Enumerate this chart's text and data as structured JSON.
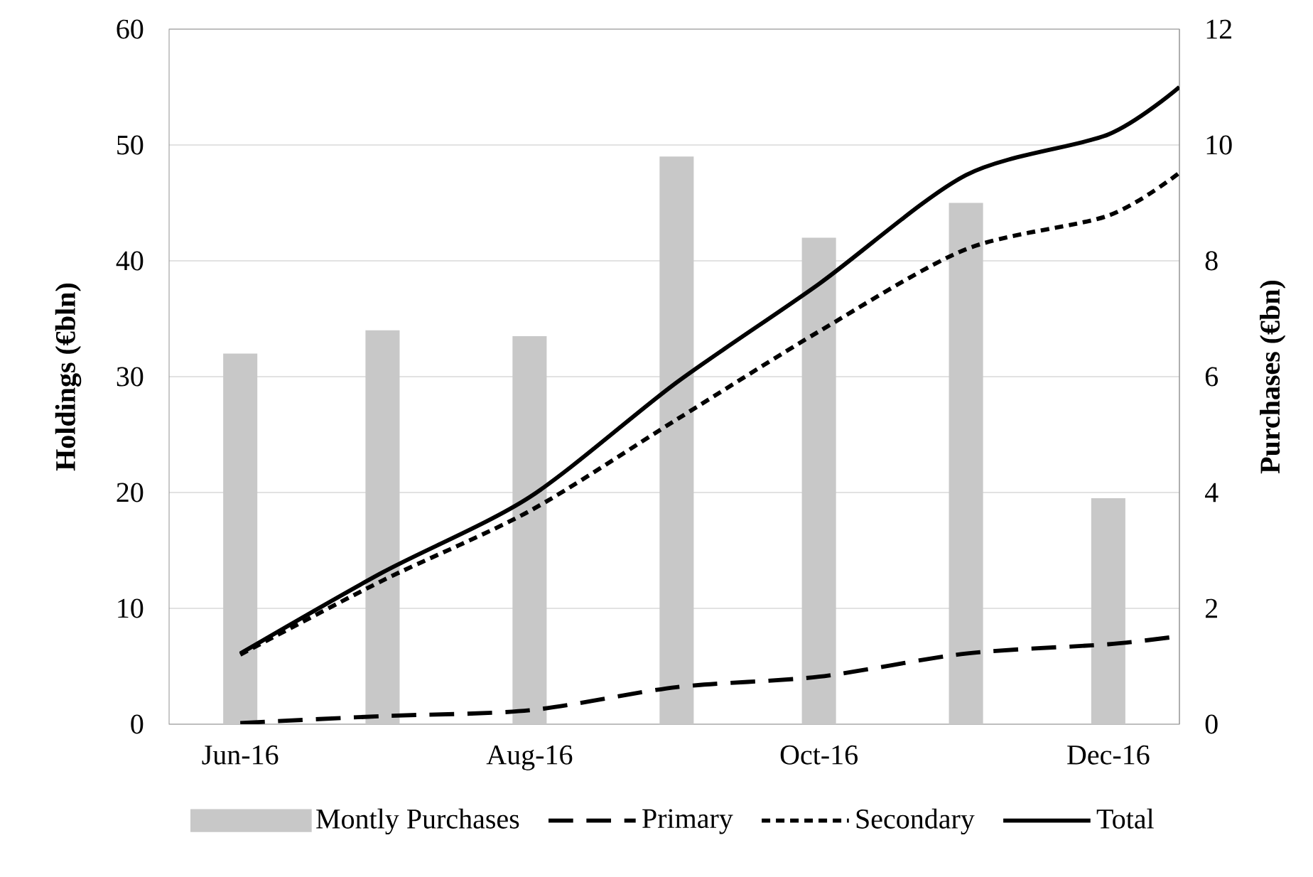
{
  "chart_data": {
    "type": "line",
    "ylabel": "Holdings (€bln)",
    "y2label": "Purchases (€bn)",
    "x": [
      "2016-06-01",
      "2016-07-01",
      "2016-08-01",
      "2016-09-01",
      "2016-10-01",
      "2016-11-01",
      "2016-12-01",
      "2016-12-16"
    ],
    "xlim": [
      "2016-05-17",
      "2016-12-16"
    ],
    "xticks": [
      {
        "value": "2016-06-01",
        "label": "Jun-16"
      },
      {
        "value": "2016-08-01",
        "label": "Aug-16"
      },
      {
        "value": "2016-10-01",
        "label": "Oct-16"
      },
      {
        "value": "2016-12-01",
        "label": "Dec-16"
      }
    ],
    "ylim": [
      0,
      60
    ],
    "yticks": [
      0,
      10,
      20,
      30,
      40,
      50,
      60
    ],
    "y2lim": [
      0,
      12
    ],
    "y2ticks": [
      0,
      2,
      4,
      6,
      8,
      10,
      12
    ],
    "grid": "y",
    "legend": "bottom",
    "series": [
      {
        "name": "Montly Purchases",
        "type": "bar",
        "axis": "y2",
        "color": "#c8c8c8",
        "x": [
          "2016-06-01",
          "2016-07-01",
          "2016-08-01",
          "2016-09-01",
          "2016-10-01",
          "2016-11-01",
          "2016-12-01"
        ],
        "values": [
          6.4,
          6.8,
          6.7,
          9.8,
          8.4,
          9.0,
          3.9
        ]
      },
      {
        "name": "Primary",
        "color": "#000000",
        "line_style": "dashed",
        "values": [
          0.1,
          0.7,
          1.2,
          3.2,
          4.1,
          6.1,
          6.9,
          7.6
        ]
      },
      {
        "name": "Secondary",
        "color": "#000000",
        "line_style": "dotted",
        "values": [
          6.0,
          12.4,
          18.4,
          26.3,
          33.9,
          41.0,
          43.9,
          47.6
        ]
      },
      {
        "name": "Total",
        "color": "#000000",
        "line_style": "solid",
        "values": [
          6.1,
          13.1,
          19.6,
          29.5,
          38.0,
          47.4,
          50.9,
          55.0
        ]
      }
    ]
  }
}
